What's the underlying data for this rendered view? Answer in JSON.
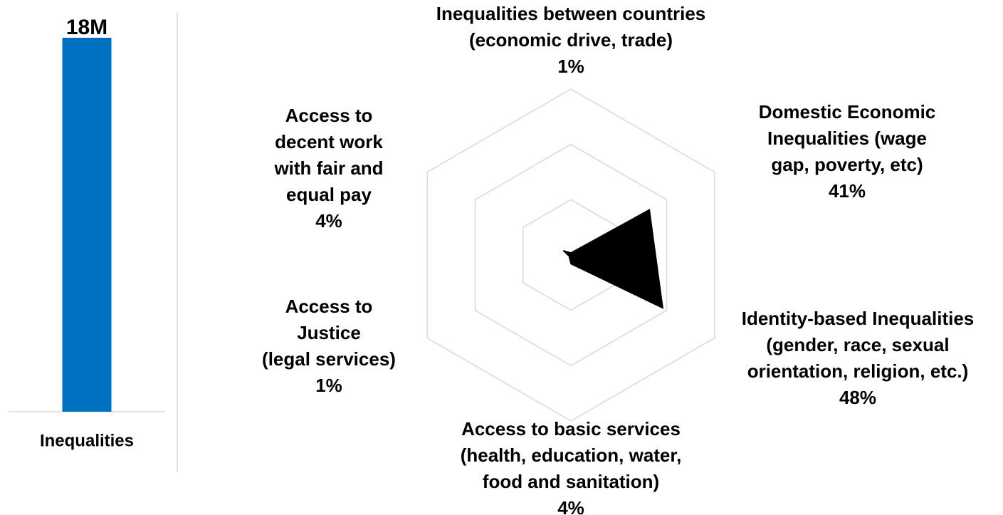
{
  "chart_data": [
    {
      "type": "bar",
      "categories": [
        "Inequalities"
      ],
      "values": [
        18000000
      ],
      "value_labels": [
        "18M"
      ],
      "color": "#0070c0"
    },
    {
      "type": "radar",
      "categories": [
        "Inequalities between countries\n(economic drive, trade)",
        "Domestic Economic\nInequalities (wage\ngap, poverty, etc)",
        "Identity-based Inequalities\n(gender, race, sexual\norientation, religion, etc.)",
        "Access to basic services\n(health, education, water,\nfood and sanitation)",
        "Access to\nJustice\n(legal services)",
        "Access to\ndecent work\nwith fair and\nequal pay"
      ],
      "values": [
        1,
        41,
        48,
        4,
        1,
        4
      ],
      "value_labels": [
        "1%",
        "41%",
        "48%",
        "4%",
        "1%",
        "4%"
      ],
      "color": "#000000",
      "ylim": [
        0,
        75
      ],
      "yticks": [
        0,
        25,
        50,
        75
      ],
      "grid": true
    }
  ]
}
